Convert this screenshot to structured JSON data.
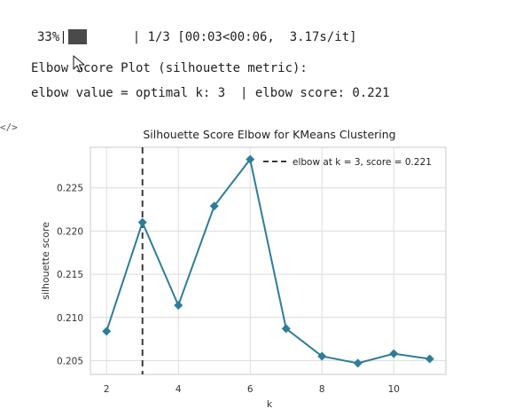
{
  "output": {
    "progress": {
      "percent_label": "33%|",
      "fraction": 0.33,
      "tail": "| 1/3 [00:03<00:06,  3.17s/it]"
    },
    "line1": "Elbow Score Plot (silhouette metric):",
    "line2": "elbow value = optimal k: 3  | elbow score: 0.221",
    "prompt_glyph": "</>"
  },
  "chart_data": {
    "type": "line",
    "title": "Silhouette Score Elbow for KMeans Clustering",
    "xlabel": "k",
    "ylabel": "silhouette score",
    "x": [
      2,
      3,
      4,
      5,
      6,
      7,
      8,
      9,
      10,
      11
    ],
    "series": [
      {
        "values": [
          0.2084,
          0.221,
          0.2114,
          0.2229,
          0.2283,
          0.2087,
          0.2055,
          0.2047,
          0.2058,
          0.2052
        ]
      }
    ],
    "xlim": [
      1.55,
      11.45
    ],
    "ylim": [
      0.2034,
      0.2297
    ],
    "xticks": [
      2,
      4,
      6,
      8,
      10
    ],
    "yticks": [
      0.205,
      0.21,
      0.215,
      0.22,
      0.225
    ],
    "ytick_labels": [
      "0.205",
      "0.210",
      "0.215",
      "0.220",
      "0.225"
    ],
    "elbow_x": 3,
    "legend": {
      "label": "elbow at k = 3, score = 0.221",
      "placement": "top-right"
    },
    "grid": true,
    "colors": {
      "line": "#2e7c9c",
      "elbow": "#3a3a3a",
      "grid": "#dcdcdc",
      "frame": "#c9c9c9"
    }
  }
}
